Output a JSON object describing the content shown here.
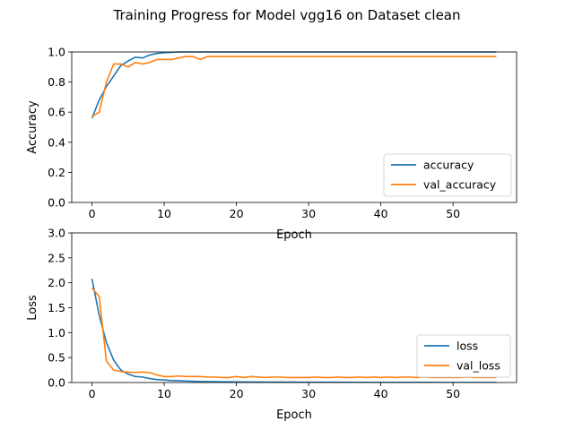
{
  "figure_title": "Training Progress for Model vgg16 on Dataset clean",
  "colors": {
    "accuracy": "#1f77b4",
    "val": "#ff7f0e",
    "axis": "#000000"
  },
  "chart_data": [
    {
      "type": "line",
      "xlabel": "Epoch",
      "ylabel": "Accuracy",
      "xlim": [
        -2.8,
        58.8
      ],
      "ylim": [
        0,
        1.0
      ],
      "xticks": [
        0,
        10,
        20,
        30,
        40,
        50
      ],
      "yticks": [
        0.0,
        0.2,
        0.4,
        0.6,
        0.8,
        1.0
      ],
      "ytick_labels": [
        "0.0",
        "0.2",
        "0.4",
        "0.6",
        "0.8",
        "1.0"
      ],
      "legend": "lower-right",
      "series": [
        {
          "name": "accuracy",
          "x": [
            0,
            1,
            2,
            3,
            4,
            5,
            6,
            7,
            8,
            9,
            10,
            11,
            12,
            13,
            14,
            15,
            16,
            17,
            18,
            19,
            20,
            21,
            22,
            23,
            24,
            25,
            26,
            27,
            28,
            29,
            30,
            31,
            32,
            33,
            34,
            35,
            36,
            37,
            38,
            39,
            40,
            41,
            42,
            43,
            44,
            45,
            46,
            47,
            48,
            49,
            50,
            51,
            52,
            53,
            54,
            55,
            56
          ],
          "y": [
            0.56,
            0.68,
            0.77,
            0.84,
            0.91,
            0.94,
            0.965,
            0.96,
            0.98,
            0.99,
            0.995,
            0.997,
            1.0,
            1.0,
            1.0,
            1.0,
            1.0,
            1.0,
            1.0,
            1.0,
            1.0,
            1.0,
            1.0,
            1.0,
            1.0,
            1.0,
            1.0,
            1.0,
            1.0,
            1.0,
            1.0,
            1.0,
            1.0,
            1.0,
            1.0,
            1.0,
            1.0,
            1.0,
            1.0,
            1.0,
            1.0,
            1.0,
            1.0,
            1.0,
            1.0,
            1.0,
            1.0,
            1.0,
            1.0,
            1.0,
            1.0,
            1.0,
            1.0,
            1.0,
            1.0,
            1.0,
            1.0
          ]
        },
        {
          "name": "val_accuracy",
          "x": [
            0,
            1,
            2,
            3,
            4,
            5,
            6,
            7,
            8,
            9,
            10,
            11,
            12,
            13,
            14,
            15,
            16,
            17,
            18,
            19,
            20,
            21,
            22,
            23,
            24,
            25,
            26,
            27,
            28,
            29,
            30,
            31,
            32,
            33,
            34,
            35,
            36,
            37,
            38,
            39,
            40,
            41,
            42,
            43,
            44,
            45,
            46,
            47,
            48,
            49,
            50,
            51,
            52,
            53,
            54,
            55,
            56
          ],
          "y": [
            0.57,
            0.6,
            0.8,
            0.92,
            0.92,
            0.9,
            0.93,
            0.92,
            0.93,
            0.95,
            0.95,
            0.95,
            0.96,
            0.97,
            0.97,
            0.95,
            0.97,
            0.97,
            0.97,
            0.97,
            0.97,
            0.97,
            0.97,
            0.97,
            0.97,
            0.97,
            0.97,
            0.97,
            0.97,
            0.97,
            0.97,
            0.97,
            0.97,
            0.97,
            0.97,
            0.97,
            0.97,
            0.97,
            0.97,
            0.97,
            0.97,
            0.97,
            0.97,
            0.97,
            0.97,
            0.97,
            0.97,
            0.97,
            0.97,
            0.97,
            0.97,
            0.97,
            0.97,
            0.97,
            0.97,
            0.97,
            0.97
          ]
        }
      ]
    },
    {
      "type": "line",
      "xlabel": "Epoch",
      "ylabel": "Loss",
      "xlim": [
        -2.8,
        58.8
      ],
      "ylim": [
        0,
        3.0
      ],
      "xticks": [
        0,
        10,
        20,
        30,
        40,
        50
      ],
      "yticks": [
        0.0,
        0.5,
        1.0,
        1.5,
        2.0,
        2.5,
        3.0
      ],
      "ytick_labels": [
        "0.0",
        "0.5",
        "1.0",
        "1.5",
        "2.0",
        "2.5",
        "3.0"
      ],
      "legend": "lower-right",
      "series": [
        {
          "name": "loss",
          "x": [
            0,
            1,
            2,
            3,
            4,
            5,
            6,
            7,
            8,
            9,
            10,
            11,
            12,
            13,
            14,
            15,
            16,
            17,
            18,
            19,
            20,
            21,
            22,
            23,
            24,
            25,
            26,
            27,
            28,
            29,
            30,
            31,
            32,
            33,
            34,
            35,
            36,
            37,
            38,
            39,
            40,
            41,
            42,
            43,
            44,
            45,
            46,
            47,
            48,
            49,
            50,
            51,
            52,
            53,
            54,
            55,
            56
          ],
          "y": [
            2.08,
            1.35,
            0.8,
            0.45,
            0.25,
            0.17,
            0.12,
            0.11,
            0.08,
            0.06,
            0.05,
            0.04,
            0.035,
            0.03,
            0.025,
            0.02,
            0.02,
            0.018,
            0.015,
            0.014,
            0.012,
            0.011,
            0.01,
            0.01,
            0.009,
            0.008,
            0.008,
            0.007,
            0.007,
            0.006,
            0.006,
            0.006,
            0.005,
            0.005,
            0.005,
            0.005,
            0.004,
            0.004,
            0.004,
            0.004,
            0.004,
            0.003,
            0.003,
            0.003,
            0.003,
            0.003,
            0.003,
            0.003,
            0.002,
            0.002,
            0.002,
            0.002,
            0.002,
            0.002,
            0.002,
            0.002,
            0.002
          ]
        },
        {
          "name": "val_loss",
          "x": [
            0,
            1,
            2,
            3,
            4,
            5,
            6,
            7,
            8,
            9,
            10,
            11,
            12,
            13,
            14,
            15,
            16,
            17,
            18,
            19,
            20,
            21,
            22,
            23,
            24,
            25,
            26,
            27,
            28,
            29,
            30,
            31,
            32,
            33,
            34,
            35,
            36,
            37,
            38,
            39,
            40,
            41,
            42,
            43,
            44,
            45,
            46,
            47,
            48,
            49,
            50,
            51,
            52,
            53,
            54,
            55,
            56
          ],
          "y": [
            1.9,
            1.72,
            0.43,
            0.25,
            0.22,
            0.21,
            0.2,
            0.21,
            0.2,
            0.15,
            0.12,
            0.12,
            0.13,
            0.12,
            0.12,
            0.12,
            0.11,
            0.11,
            0.1,
            0.1,
            0.12,
            0.1,
            0.12,
            0.11,
            0.1,
            0.11,
            0.11,
            0.1,
            0.1,
            0.1,
            0.1,
            0.11,
            0.1,
            0.1,
            0.11,
            0.1,
            0.1,
            0.11,
            0.1,
            0.11,
            0.1,
            0.11,
            0.1,
            0.11,
            0.11,
            0.1,
            0.11,
            0.1,
            0.1,
            0.1,
            0.1,
            0.1,
            0.11,
            0.1,
            0.1,
            0.1,
            0.1
          ]
        }
      ]
    }
  ]
}
